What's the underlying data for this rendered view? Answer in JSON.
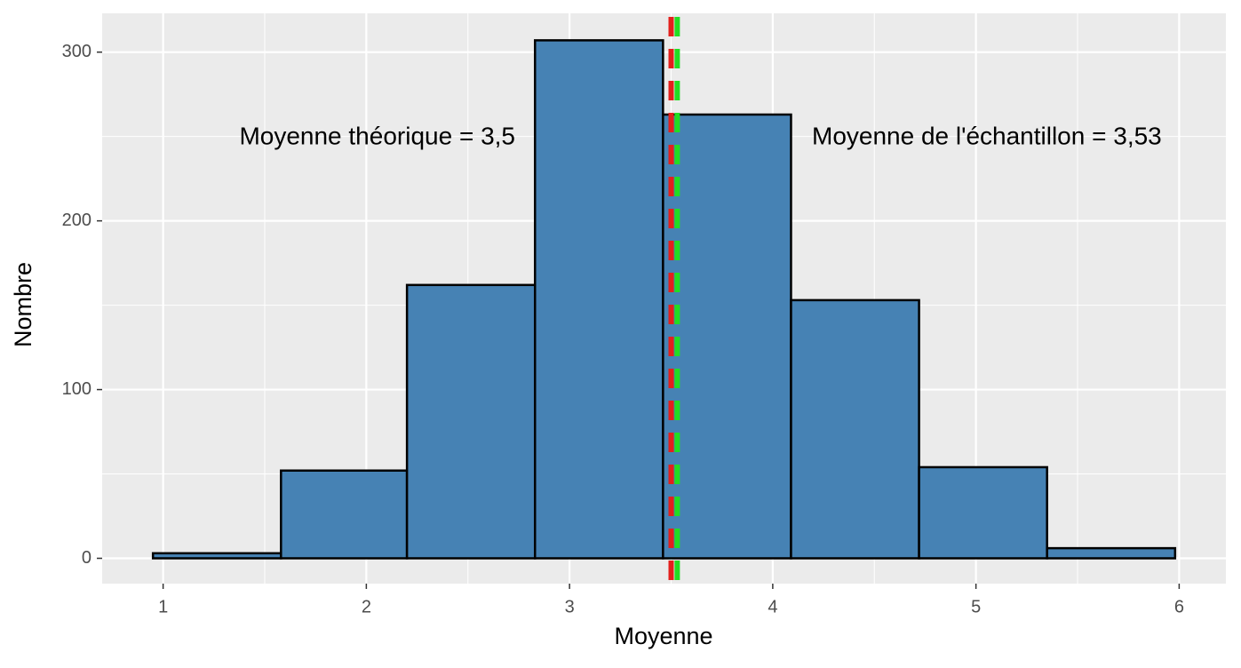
{
  "chart_data": {
    "type": "histogram",
    "x_label": "Moyenne",
    "y_label": "Nombre",
    "bins": [
      0.95,
      1.58,
      2.2,
      2.83,
      3.46,
      4.09,
      4.72,
      5.35,
      5.98
    ],
    "counts": [
      3,
      52,
      162,
      307,
      263,
      153,
      54,
      6
    ],
    "color": "#4682b4",
    "xlim": [
      0.7,
      6.23
    ],
    "xticks": [
      1,
      2,
      3,
      4,
      5,
      6
    ],
    "ylim": [
      -15,
      323
    ],
    "yticks": [
      0,
      100,
      200,
      300
    ],
    "grid": true,
    "vlines": [
      {
        "value": 3.5,
        "color": "#e3201c",
        "label": "Moyenne théorique = 3,5"
      },
      {
        "value": 3.53,
        "color": "#22dd22",
        "label": "Moyenne de l'échantillon = 3,53"
      }
    ]
  }
}
